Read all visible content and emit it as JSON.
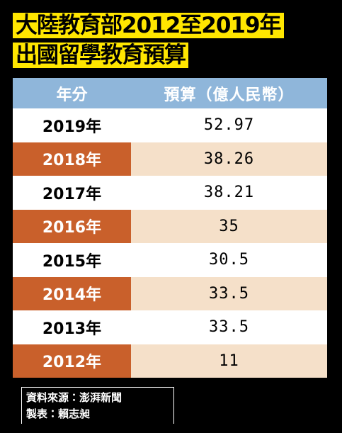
{
  "header": {
    "title_lines": [
      "大陸教育部2012至2019年",
      "出國留學教育預算"
    ]
  },
  "table": {
    "columns": [
      "年分",
      "預算（億人民幣）"
    ],
    "rows": [
      [
        "2019年",
        "52.97"
      ],
      [
        "2018年",
        "38.26"
      ],
      [
        "2017年",
        "38.21"
      ],
      [
        "2016年",
        "35"
      ],
      [
        "2015年",
        "30.5"
      ],
      [
        "2014年",
        "33.5"
      ],
      [
        "2013年",
        "33.5"
      ],
      [
        "2012年",
        "11"
      ]
    ]
  },
  "footer": {
    "lines": [
      "資料來源：澎湃新聞",
      "製表：賴志昶"
    ]
  }
}
